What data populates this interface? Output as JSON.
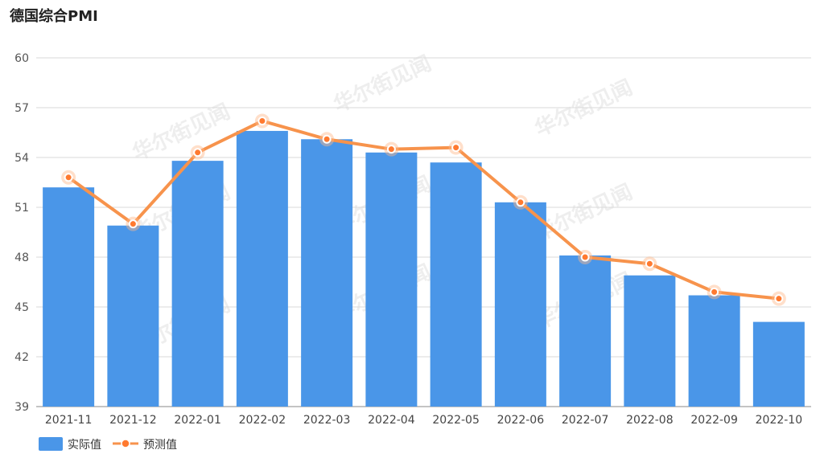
{
  "chart_data": {
    "type": "bar",
    "title": "德国综合PMI",
    "categories": [
      "2021-11",
      "2021-12",
      "2022-01",
      "2022-02",
      "2022-03",
      "2022-04",
      "2022-05",
      "2022-06",
      "2022-07",
      "2022-08",
      "2022-09",
      "2022-10"
    ],
    "ylim": [
      39,
      60
    ],
    "yticks": [
      39,
      42,
      45,
      48,
      51,
      54,
      57,
      60
    ],
    "grid": true,
    "legend_position": "bottom-left",
    "series": [
      {
        "name": "实际值",
        "type": "bar",
        "color": "#4a96e8",
        "values": [
          52.2,
          49.9,
          53.8,
          55.6,
          55.1,
          54.3,
          53.7,
          51.3,
          48.1,
          46.9,
          45.7,
          44.1
        ]
      },
      {
        "name": "预测值",
        "type": "line",
        "color": "#f7934c",
        "values": [
          52.8,
          50.0,
          54.3,
          56.2,
          55.1,
          54.5,
          54.6,
          51.3,
          48.0,
          47.6,
          45.9,
          45.5
        ]
      }
    ]
  },
  "watermark": "华尔街见闻"
}
